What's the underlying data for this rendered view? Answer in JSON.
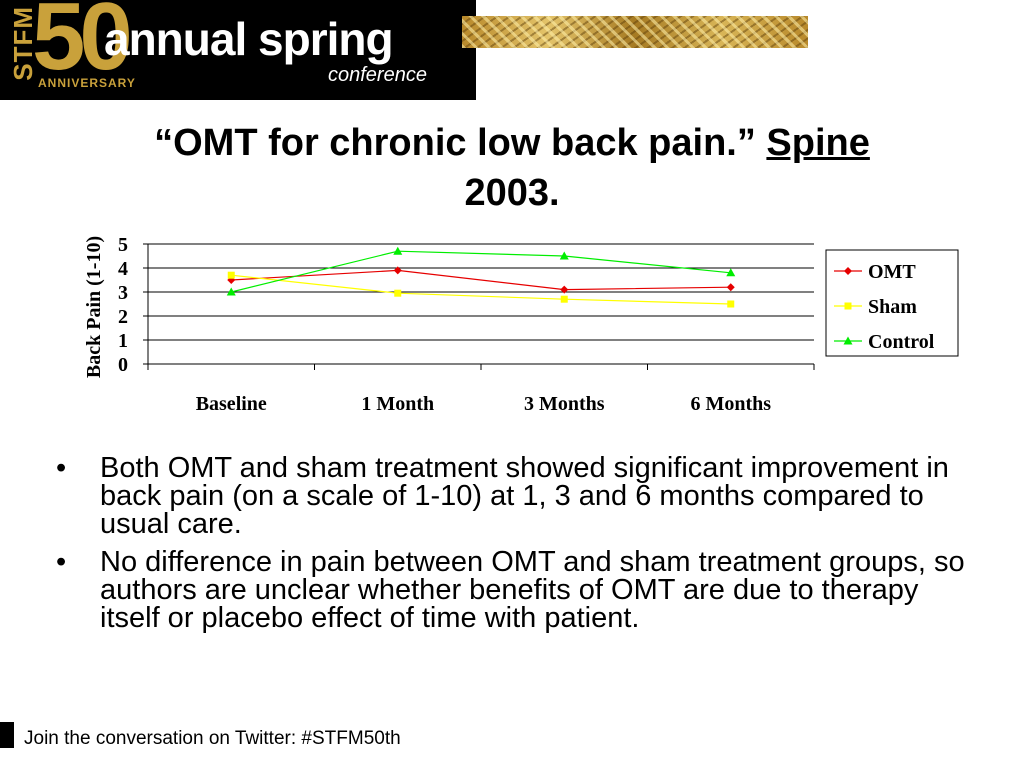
{
  "banner": {
    "stfm": "STFM",
    "fifty": "50",
    "anniversary": "ANNIVERSARY",
    "title": "annual spring",
    "subtitle": "conference",
    "gold_color": "#c9a13b"
  },
  "slide": {
    "title_quote": "“OMT for chronic low back pain.”",
    "title_journal": "Spine",
    "title_year": "2003."
  },
  "chart_data": {
    "type": "line",
    "categories": [
      "Baseline",
      "1 Month",
      "3 Months",
      "6 Months"
    ],
    "series": [
      {
        "name": "OMT",
        "values": [
          3.5,
          3.9,
          3.1,
          3.2
        ],
        "color": "#e60000",
        "marker": "diamond"
      },
      {
        "name": "Sham",
        "values": [
          3.7,
          2.95,
          2.7,
          2.5
        ],
        "color": "#ffff00",
        "marker": "square"
      },
      {
        "name": "Control",
        "values": [
          3.0,
          4.7,
          4.5,
          3.8
        ],
        "color": "#00ee00",
        "marker": "triangle"
      }
    ],
    "ylabel": "Back Pain (1-10)",
    "ylim": [
      0,
      5
    ],
    "yticks": [
      "0",
      "1",
      "2",
      "3",
      "4",
      "5"
    ],
    "grid": true,
    "legend": "right"
  },
  "bullets": [
    "Both OMT and sham treatment showed significant improvement in back pain (on a scale of 1-10) at 1, 3 and 6 months compared to usual care.",
    "No difference in pain between OMT and sham treatment groups, so authors are unclear whether benefits of OMT are due to therapy itself or placebo effect of time with patient."
  ],
  "bullet_symbol": "•",
  "footer": "Join the conversation on Twitter: #STFM50th"
}
